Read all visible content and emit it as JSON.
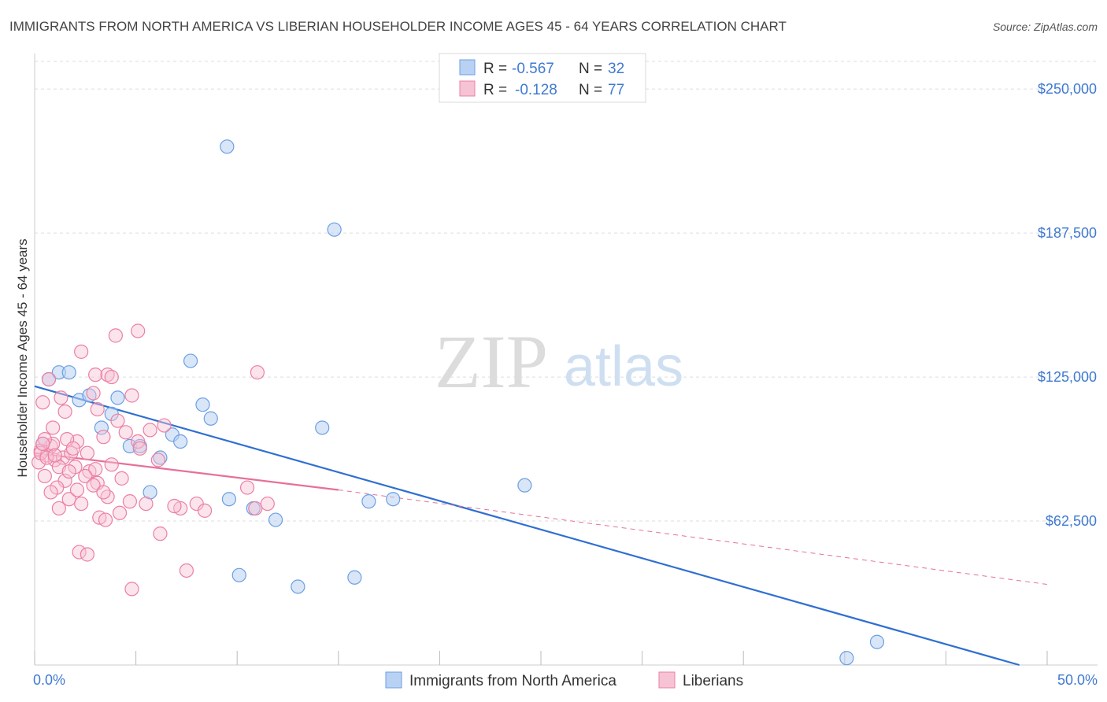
{
  "title": "IMMIGRANTS FROM NORTH AMERICA VS LIBERIAN HOUSEHOLDER INCOME AGES 45 - 64 YEARS CORRELATION CHART",
  "source": "Source: ZipAtlas.com",
  "watermark": {
    "zip": "ZIP",
    "atlas": "atlas"
  },
  "colors": {
    "blue": "#6b9fe4",
    "blue_fill": "#b9d2f3",
    "blue_line": "#2f6fd1",
    "pink": "#ec7fa3",
    "pink_fill": "#f6c3d4",
    "pink_line": "#e6709a",
    "grid": "#dddddd",
    "axis_text": "#3f7ad1"
  },
  "legend": {
    "series1": {
      "r_label": "R = ",
      "r_value": "-0.567",
      "n_label": "N = ",
      "n_value": "32"
    },
    "series2": {
      "r_label": "R = ",
      "r_value": "-0.128",
      "n_label": "N = ",
      "n_value": "77"
    }
  },
  "chart_data": {
    "type": "scatter",
    "title": "IMMIGRANTS FROM NORTH AMERICA VS LIBERIAN HOUSEHOLDER INCOME AGES 45 - 64 YEARS CORRELATION CHART",
    "xlabel": "",
    "ylabel": "Householder Income Ages 45 - 64 years",
    "xlim": [
      0,
      50
    ],
    "ylim": [
      0,
      262000
    ],
    "x_tick_labels": [
      "0.0%",
      "50.0%"
    ],
    "y_ticks": [
      62500,
      125000,
      187500,
      250000
    ],
    "y_tick_labels": [
      "$62,500",
      "$125,000",
      "$187,500",
      "$250,000"
    ],
    "grid": true,
    "legend_position": "top-center",
    "series": [
      {
        "name": "Immigrants from North America",
        "color": "blue",
        "r": -0.567,
        "n": 32,
        "trend": {
          "x": [
            0,
            50
          ],
          "y": [
            121000,
            -7000
          ],
          "dashed_extension": false
        },
        "points": [
          [
            9.5,
            225000
          ],
          [
            14.8,
            189000
          ],
          [
            0.7,
            124000
          ],
          [
            1.2,
            127000
          ],
          [
            1.7,
            127000
          ],
          [
            2.2,
            115000
          ],
          [
            2.7,
            117000
          ],
          [
            4.1,
            116000
          ],
          [
            7.7,
            132000
          ],
          [
            8.3,
            113000
          ],
          [
            8.7,
            107000
          ],
          [
            3.3,
            103000
          ],
          [
            3.8,
            109000
          ],
          [
            6.8,
            100000
          ],
          [
            7.2,
            97000
          ],
          [
            14.2,
            103000
          ],
          [
            4.7,
            95000
          ],
          [
            5.2,
            95000
          ],
          [
            6.2,
            90000
          ],
          [
            5.7,
            75000
          ],
          [
            9.6,
            72000
          ],
          [
            10.8,
            68000
          ],
          [
            11.9,
            63000
          ],
          [
            16.5,
            71000
          ],
          [
            17.7,
            72000
          ],
          [
            24.2,
            78000
          ],
          [
            10.1,
            39000
          ],
          [
            13.0,
            34000
          ],
          [
            15.8,
            38000
          ],
          [
            40.1,
            3000
          ],
          [
            41.6,
            10000
          ],
          [
            0.4,
            96000
          ]
        ]
      },
      {
        "name": "Liberians",
        "color": "pink",
        "r": -0.128,
        "n": 77,
        "trend": {
          "x": [
            0,
            15
          ],
          "y": [
            92000,
            76000
          ],
          "dashed_to": [
            50,
            35000
          ]
        },
        "points": [
          [
            5.1,
            145000
          ],
          [
            4.0,
            143000
          ],
          [
            3.0,
            126000
          ],
          [
            0.7,
            124000
          ],
          [
            11.0,
            127000
          ],
          [
            2.3,
            136000
          ],
          [
            3.6,
            126000
          ],
          [
            1.5,
            110000
          ],
          [
            2.9,
            118000
          ],
          [
            3.8,
            125000
          ],
          [
            4.8,
            117000
          ],
          [
            1.3,
            116000
          ],
          [
            0.4,
            114000
          ],
          [
            3.1,
            111000
          ],
          [
            6.4,
            104000
          ],
          [
            4.1,
            106000
          ],
          [
            0.9,
            103000
          ],
          [
            4.5,
            101000
          ],
          [
            2.1,
            97000
          ],
          [
            3.4,
            99000
          ],
          [
            1.6,
            98000
          ],
          [
            0.8,
            95000
          ],
          [
            5.1,
            97000
          ],
          [
            0.3,
            93000
          ],
          [
            0.6,
            91000
          ],
          [
            1.0,
            89000
          ],
          [
            1.4,
            90000
          ],
          [
            1.8,
            92000
          ],
          [
            2.6,
            92000
          ],
          [
            0.2,
            88000
          ],
          [
            1.2,
            86000
          ],
          [
            2.0,
            86000
          ],
          [
            2.7,
            84000
          ],
          [
            3.0,
            85000
          ],
          [
            0.5,
            82000
          ],
          [
            1.5,
            80000
          ],
          [
            2.5,
            82000
          ],
          [
            4.3,
            81000
          ],
          [
            3.1,
            79000
          ],
          [
            1.1,
            77000
          ],
          [
            0.8,
            75000
          ],
          [
            1.7,
            72000
          ],
          [
            2.3,
            70000
          ],
          [
            3.6,
            73000
          ],
          [
            4.7,
            71000
          ],
          [
            5.5,
            70000
          ],
          [
            7.2,
            68000
          ],
          [
            8.0,
            70000
          ],
          [
            8.4,
            67000
          ],
          [
            10.9,
            68000
          ],
          [
            11.5,
            70000
          ],
          [
            1.2,
            68000
          ],
          [
            3.2,
            64000
          ],
          [
            3.5,
            63000
          ],
          [
            4.2,
            66000
          ],
          [
            6.2,
            57000
          ],
          [
            2.2,
            49000
          ],
          [
            2.6,
            48000
          ],
          [
            7.5,
            41000
          ],
          [
            4.8,
            33000
          ],
          [
            10.5,
            77000
          ],
          [
            5.2,
            94000
          ],
          [
            0.9,
            96000
          ],
          [
            1.9,
            94000
          ],
          [
            0.5,
            98000
          ],
          [
            5.7,
            102000
          ],
          [
            0.3,
            92000
          ],
          [
            0.6,
            90000
          ],
          [
            1.0,
            91000
          ],
          [
            2.9,
            78000
          ],
          [
            3.8,
            87000
          ],
          [
            6.9,
            69000
          ],
          [
            0.4,
            96000
          ],
          [
            1.7,
            84000
          ],
          [
            3.4,
            75000
          ],
          [
            6.1,
            89000
          ],
          [
            2.1,
            76000
          ]
        ]
      }
    ]
  },
  "bottom_legend": {
    "series1": "Immigrants from North America",
    "series2": "Liberians"
  }
}
